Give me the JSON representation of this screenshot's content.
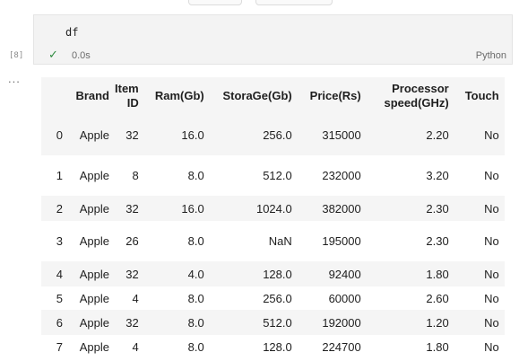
{
  "cell": {
    "code": "df",
    "execution_count": "[8]",
    "status_time": "0.0s",
    "language": "Python",
    "more_label": "..."
  },
  "table": {
    "columns": [
      "",
      "Brand",
      "Item ID",
      "Ram(Gb)",
      "StoraGe(Gb)",
      "Price(Rs)",
      "Processor speed(GHz)",
      "Touch"
    ],
    "rows": [
      [
        "0",
        "Apple",
        "32",
        "16.0",
        "256.0",
        "315000",
        "2.20",
        "No"
      ],
      [
        "1",
        "Apple",
        "8",
        "8.0",
        "512.0",
        "232000",
        "3.20",
        "No"
      ],
      [
        "2",
        "Apple",
        "32",
        "16.0",
        "1024.0",
        "382000",
        "2.30",
        "No"
      ],
      [
        "3",
        "Apple",
        "26",
        "8.0",
        "NaN",
        "195000",
        "2.30",
        "No"
      ],
      [
        "4",
        "Apple",
        "32",
        "4.0",
        "128.0",
        "92400",
        "1.80",
        "No"
      ],
      [
        "5",
        "Apple",
        "4",
        "8.0",
        "256.0",
        "60000",
        "2.60",
        "No"
      ],
      [
        "6",
        "Apple",
        "32",
        "8.0",
        "512.0",
        "192000",
        "1.20",
        "No"
      ],
      [
        "7",
        "Apple",
        "4",
        "8.0",
        "128.0",
        "224700",
        "1.80",
        "No"
      ]
    ]
  },
  "colors": {
    "cell_bg": "#f3f3f3",
    "stripe": "#f5f5f5",
    "success": "#2e8b3f"
  }
}
